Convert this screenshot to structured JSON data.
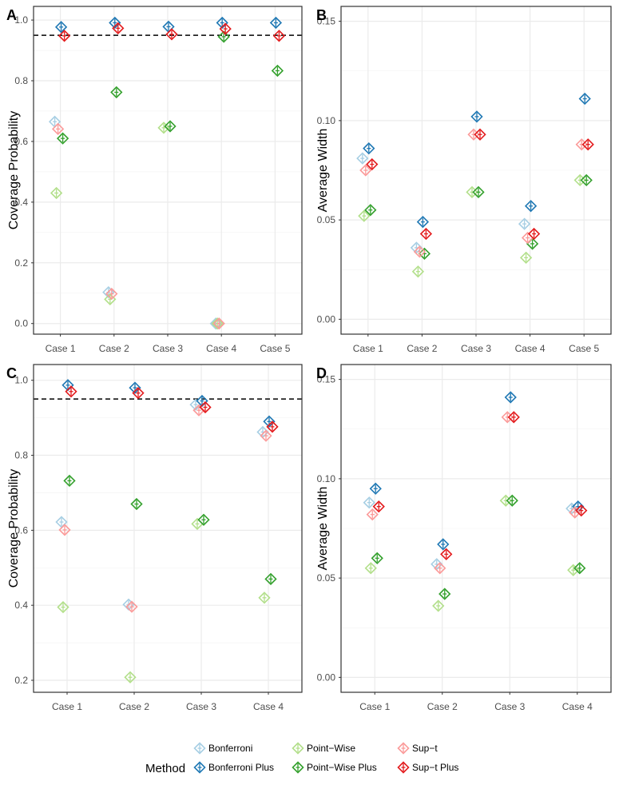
{
  "methods": [
    {
      "name": "Bonferroni",
      "color": "#a6cee3"
    },
    {
      "name": "Bonferroni Plus",
      "color": "#1f78b4"
    },
    {
      "name": "Point-Wise",
      "color": "#b2df8a"
    },
    {
      "name": "Point-Wise Plus",
      "color": "#33a02c"
    },
    {
      "name": "Sup-t",
      "color": "#fb9a99"
    },
    {
      "name": "Sup-t Plus",
      "color": "#e31a1c"
    }
  ],
  "legend": {
    "title": "Method",
    "labels": [
      "Bonferroni",
      "Bonferroni Plus",
      "Point−Wise",
      "Point−Wise Plus",
      "Sup−t",
      "Sup−t Plus"
    ]
  },
  "chart_data": [
    {
      "panel": "A",
      "type": "scatter",
      "ylabel": "Coverage Probability",
      "xlabel": "",
      "categories": [
        "Case 1",
        "Case 2",
        "Case 3",
        "Case 4",
        "Case 5"
      ],
      "ylim": [
        -0.035,
        1.045
      ],
      "yticks": [
        0.0,
        0.2,
        0.4,
        0.6,
        0.8,
        1.0
      ],
      "ytick_labels": [
        "0.0",
        "0.2",
        "0.4",
        "0.6",
        "0.8",
        "1.0"
      ],
      "reference_line": 0.95,
      "series": [
        {
          "name": "Bonferroni",
          "values": [
            0.665,
            0.103,
            null,
            0.0,
            null
          ]
        },
        {
          "name": "Bonferroni Plus",
          "values": [
            0.977,
            0.991,
            0.978,
            0.991,
            0.991
          ]
        },
        {
          "name": "Point-Wise",
          "values": [
            0.43,
            0.08,
            0.645,
            0.0,
            null
          ]
        },
        {
          "name": "Point-Wise Plus",
          "values": [
            0.61,
            0.762,
            0.65,
            0.945,
            0.833
          ]
        },
        {
          "name": "Sup-t",
          "values": [
            0.641,
            0.098,
            null,
            0.0,
            null
          ]
        },
        {
          "name": "Sup-t Plus",
          "values": [
            0.948,
            0.973,
            0.953,
            0.971,
            0.948
          ]
        }
      ]
    },
    {
      "panel": "B",
      "type": "scatter",
      "ylabel": "Average Width",
      "xlabel": "",
      "categories": [
        "Case 1",
        "Case 2",
        "Case 3",
        "Case 4",
        "Case 5"
      ],
      "ylim": [
        -0.0075,
        0.1575
      ],
      "yticks": [
        0.0,
        0.05,
        0.1,
        0.15
      ],
      "ytick_labels": [
        "0.00",
        "0.05",
        "0.10",
        "0.15"
      ],
      "series": [
        {
          "name": "Bonferroni",
          "values": [
            0.081,
            0.036,
            null,
            0.048,
            null
          ]
        },
        {
          "name": "Bonferroni Plus",
          "values": [
            0.086,
            0.049,
            0.102,
            0.057,
            0.111
          ]
        },
        {
          "name": "Point-Wise",
          "values": [
            0.052,
            0.024,
            0.064,
            0.031,
            0.07
          ]
        },
        {
          "name": "Point-Wise Plus",
          "values": [
            0.055,
            0.033,
            0.064,
            0.038,
            0.07
          ]
        },
        {
          "name": "Sup-t",
          "values": [
            0.075,
            0.034,
            0.093,
            0.041,
            0.088
          ]
        },
        {
          "name": "Sup-t Plus",
          "values": [
            0.078,
            0.043,
            0.093,
            0.043,
            0.088
          ]
        }
      ]
    },
    {
      "panel": "C",
      "type": "scatter",
      "ylabel": "Coverage Probability",
      "xlabel": "",
      "categories": [
        "Case 1",
        "Case 2",
        "Case 3",
        "Case 4"
      ],
      "ylim": [
        0.168,
        1.042
      ],
      "yticks": [
        0.2,
        0.4,
        0.6,
        0.8,
        1.0
      ],
      "ytick_labels": [
        "0.2",
        "0.4",
        "0.6",
        "0.8",
        "1.0"
      ],
      "reference_line": 0.95,
      "series": [
        {
          "name": "Bonferroni",
          "values": [
            0.622,
            0.402,
            0.935,
            0.862
          ]
        },
        {
          "name": "Bonferroni Plus",
          "values": [
            0.987,
            0.98,
            0.945,
            0.89
          ]
        },
        {
          "name": "Point-Wise",
          "values": [
            0.395,
            0.208,
            0.617,
            0.42
          ]
        },
        {
          "name": "Point-Wise Plus",
          "values": [
            0.732,
            0.67,
            0.628,
            0.47
          ]
        },
        {
          "name": "Sup-t",
          "values": [
            0.601,
            0.396,
            0.92,
            0.852
          ]
        },
        {
          "name": "Sup-t Plus",
          "values": [
            0.97,
            0.966,
            0.928,
            0.876
          ]
        }
      ]
    },
    {
      "panel": "D",
      "type": "scatter",
      "ylabel": "Average Width",
      "xlabel": "",
      "categories": [
        "Case 1",
        "Case 2",
        "Case 3",
        "Case 4"
      ],
      "ylim": [
        -0.0075,
        0.1575
      ],
      "yticks": [
        0.0,
        0.05,
        0.1,
        0.15
      ],
      "ytick_labels": [
        "0.00",
        "0.05",
        "0.10",
        "0.15"
      ],
      "series": [
        {
          "name": "Bonferroni",
          "values": [
            0.088,
            0.057,
            null,
            0.085
          ]
        },
        {
          "name": "Bonferroni Plus",
          "values": [
            0.095,
            0.067,
            0.141,
            0.086
          ]
        },
        {
          "name": "Point-Wise",
          "values": [
            0.055,
            0.036,
            0.089,
            0.054
          ]
        },
        {
          "name": "Point-Wise Plus",
          "values": [
            0.06,
            0.042,
            0.089,
            0.055
          ]
        },
        {
          "name": "Sup-t",
          "values": [
            0.082,
            0.055,
            0.131,
            0.083
          ]
        },
        {
          "name": "Sup-t Plus",
          "values": [
            0.086,
            0.062,
            0.131,
            0.084
          ]
        }
      ]
    }
  ]
}
